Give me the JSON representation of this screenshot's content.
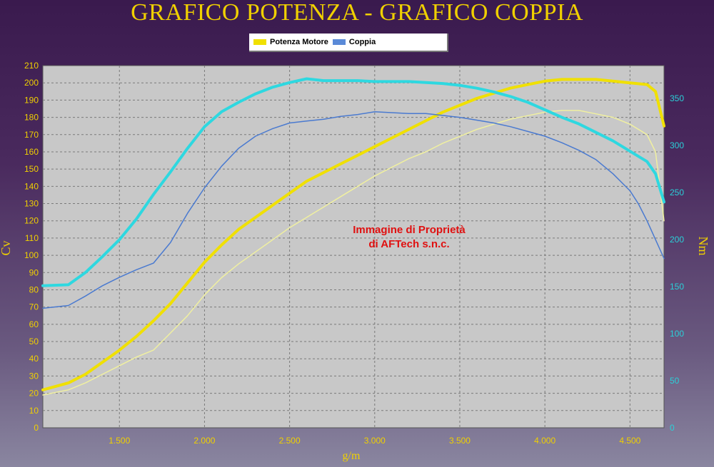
{
  "title": "GRAFICO POTENZA - GRAFICO COPPIA",
  "legend": [
    {
      "label": "Potenza Motore",
      "color": "#f0e000"
    },
    {
      "label": "Coppia",
      "color": "#5a8ad8"
    }
  ],
  "watermark": [
    "Immagine di Proprietà",
    "di AFTech s.n.c."
  ],
  "chart_data": {
    "type": "line",
    "xlabel": "g/m",
    "ylabel": "Cv",
    "y2label": "Nm",
    "xlim": [
      1050,
      4700
    ],
    "ylim": [
      0,
      210
    ],
    "y2lim": [
      0,
      385
    ],
    "x_ticks": [
      {
        "value": 1500,
        "label": "1.500"
      },
      {
        "value": 2000,
        "label": "2.000"
      },
      {
        "value": 2500,
        "label": "2.500"
      },
      {
        "value": 3000,
        "label": "3.000"
      },
      {
        "value": 3500,
        "label": "3.500"
      },
      {
        "value": 4000,
        "label": "4.000"
      },
      {
        "value": 4500,
        "label": "4.500"
      }
    ],
    "y_ticks": [
      0,
      10,
      20,
      30,
      40,
      50,
      60,
      70,
      80,
      90,
      100,
      110,
      120,
      130,
      140,
      150,
      160,
      170,
      180,
      190,
      200,
      210
    ],
    "y2_ticks": [
      0,
      50,
      100,
      150,
      200,
      250,
      300,
      350
    ],
    "grid": true,
    "background": "#c8c8c8",
    "series": [
      {
        "name": "Potenza Motore",
        "axis": "left",
        "color": "#f0e000",
        "width": 4,
        "x": [
          1050,
          1200,
          1300,
          1400,
          1500,
          1600,
          1700,
          1800,
          1900,
          2000,
          2100,
          2200,
          2300,
          2400,
          2500,
          2600,
          2700,
          2800,
          2900,
          3000,
          3100,
          3200,
          3300,
          3400,
          3500,
          3600,
          3700,
          3800,
          3900,
          4000,
          4100,
          4200,
          4300,
          4400,
          4500,
          4600,
          4650,
          4700
        ],
        "y": [
          22,
          26,
          31,
          38,
          45,
          53,
          62,
          72,
          84,
          96,
          106,
          115,
          122,
          129,
          136,
          143,
          148,
          153,
          158,
          163,
          168,
          173,
          178,
          183,
          187,
          191,
          194,
          197,
          199,
          201,
          202,
          202,
          202,
          201,
          200,
          199,
          195,
          175
        ]
      },
      {
        "name": "",
        "axis": "left",
        "color": "#f0f0a0",
        "width": 1.5,
        "x": [
          1050,
          1200,
          1300,
          1400,
          1500,
          1600,
          1700,
          1800,
          1900,
          2000,
          2100,
          2200,
          2300,
          2400,
          2500,
          2600,
          2700,
          2800,
          2900,
          3000,
          3100,
          3200,
          3300,
          3400,
          3500,
          3600,
          3700,
          3800,
          3900,
          4000,
          4100,
          4200,
          4300,
          4400,
          4500,
          4600,
          4650,
          4700
        ],
        "y": [
          19,
          22,
          26,
          31,
          36,
          41,
          45,
          55,
          65,
          77,
          87,
          95,
          102,
          109,
          116,
          122,
          128,
          134,
          140,
          146,
          151,
          156,
          160,
          165,
          169,
          173,
          176,
          179,
          181,
          183,
          184,
          184,
          182,
          180,
          176,
          170,
          160,
          120
        ]
      },
      {
        "name": "",
        "axis": "right",
        "color": "#2ed8e0",
        "width": 4,
        "x": [
          1050,
          1200,
          1300,
          1400,
          1500,
          1600,
          1700,
          1800,
          1900,
          2000,
          2100,
          2200,
          2300,
          2400,
          2500,
          2600,
          2700,
          2800,
          2900,
          3000,
          3100,
          3200,
          3300,
          3400,
          3500,
          3600,
          3700,
          3800,
          3900,
          4000,
          4100,
          4200,
          4300,
          4400,
          4500,
          4600,
          4650,
          4700
        ],
        "y": [
          151,
          152,
          165,
          182,
          200,
          222,
          248,
          272,
          297,
          320,
          336,
          346,
          355,
          362,
          367,
          371,
          369,
          369,
          369,
          368,
          368,
          368,
          367,
          366,
          364,
          361,
          357,
          352,
          346,
          338,
          330,
          323,
          314,
          305,
          294,
          283,
          270,
          240
        ]
      },
      {
        "name": "Coppia",
        "axis": "right",
        "color": "#4a7ad0",
        "width": 1.5,
        "x": [
          1050,
          1200,
          1300,
          1400,
          1500,
          1600,
          1700,
          1800,
          1900,
          2000,
          2100,
          2200,
          2300,
          2400,
          2500,
          2600,
          2700,
          2800,
          2900,
          3000,
          3100,
          3200,
          3300,
          3400,
          3500,
          3600,
          3700,
          3800,
          3900,
          4000,
          4100,
          4200,
          4300,
          4400,
          4500,
          4550,
          4600,
          4650,
          4700
        ],
        "y": [
          127,
          130,
          140,
          151,
          160,
          168,
          175,
          197,
          228,
          255,
          278,
          297,
          310,
          318,
          324,
          326,
          328,
          331,
          333,
          336,
          335,
          334,
          334,
          332,
          330,
          327,
          324,
          320,
          315,
          310,
          303,
          295,
          285,
          270,
          252,
          238,
          220,
          200,
          180
        ]
      }
    ]
  }
}
